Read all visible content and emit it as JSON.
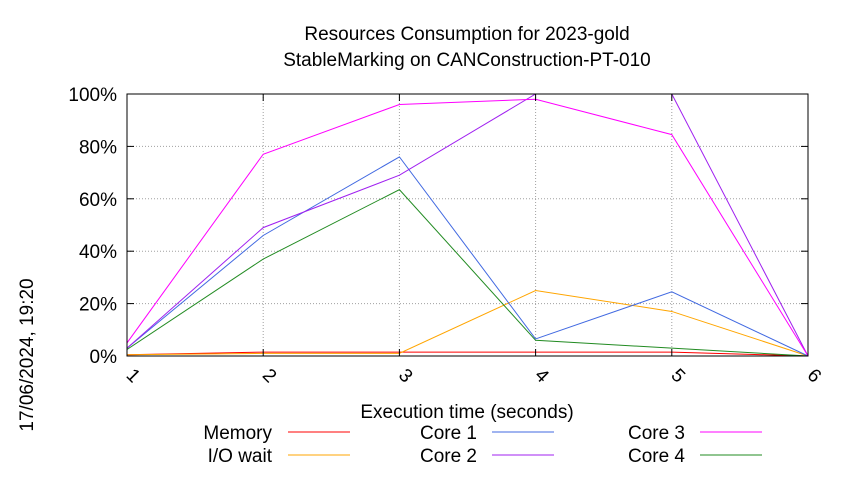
{
  "chart_data": {
    "type": "line",
    "title": [
      "Resources Consumption for 2023-gold",
      "StableMarking on CANConstruction-PT-010"
    ],
    "xlabel": "Execution time (seconds)",
    "ylabel": "",
    "side_label": "17/06/2024, 19:20",
    "x": [
      1,
      2,
      3,
      4,
      5,
      6
    ],
    "xlim": [
      1,
      6
    ],
    "ylim": [
      0,
      100
    ],
    "y_ticks": [
      0,
      20,
      40,
      60,
      80,
      100
    ],
    "y_tick_labels": [
      "0%",
      "20%",
      "40%",
      "60%",
      "80%",
      "100%"
    ],
    "x_tick_labels": [
      "1",
      "2",
      "3",
      "4",
      "5",
      "6"
    ],
    "grid": true,
    "legend_position": "bottom",
    "series": [
      {
        "name": "Memory",
        "color": "#ff0000",
        "values": [
          0.5,
          1.5,
          1.5,
          1.5,
          1.5,
          0
        ]
      },
      {
        "name": "I/O wait",
        "color": "#ffa500",
        "values": [
          0.5,
          1,
          1,
          25,
          17,
          0
        ]
      },
      {
        "name": "Core 1",
        "color": "#4169e1",
        "values": [
          3,
          46,
          76,
          6.5,
          24.5,
          0
        ]
      },
      {
        "name": "Core 2",
        "color": "#a020f0",
        "values": [
          3,
          49,
          69,
          100,
          100,
          0
        ]
      },
      {
        "name": "Core 3",
        "color": "#ff00ff",
        "values": [
          5,
          77,
          96,
          98,
          84.5,
          0
        ]
      },
      {
        "name": "Core 4",
        "color": "#228b22",
        "values": [
          2.5,
          37,
          63.5,
          6,
          3,
          0
        ]
      }
    ]
  }
}
